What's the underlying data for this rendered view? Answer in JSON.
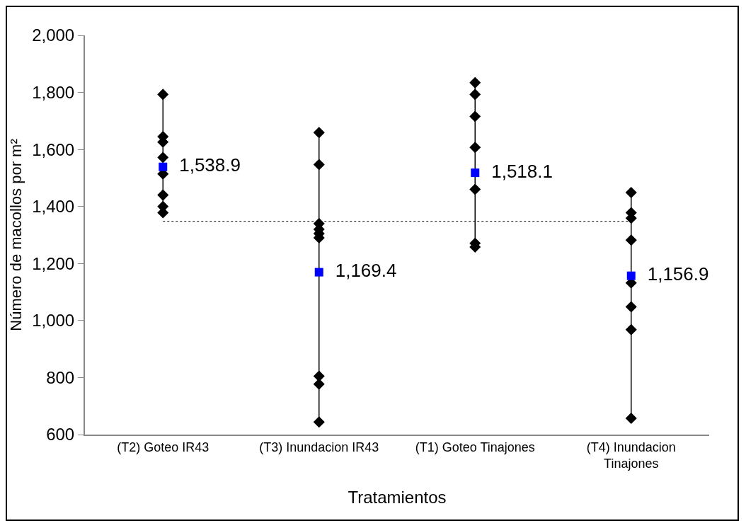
{
  "chart_data": {
    "type": "scatter",
    "xlabel": "Tratamientos",
    "ylabel": "Número de macollos por m²",
    "categories": [
      "(T2) Goteo IR43",
      "(T3) Inundacion IR43",
      "(T1) Goteo Tinajones",
      "(T4) Inundacion Tinajones"
    ],
    "ylim": [
      600,
      2000
    ],
    "yticks": [
      {
        "value": 600,
        "label": "600"
      },
      {
        "value": 800,
        "label": "800"
      },
      {
        "value": 1000,
        "label": "1,000"
      },
      {
        "value": 1200,
        "label": "1,200"
      },
      {
        "value": 1400,
        "label": "1,400"
      },
      {
        "value": 1600,
        "label": "1,600"
      },
      {
        "value": 1800,
        "label": "1,800"
      },
      {
        "value": 2000,
        "label": "2,000"
      }
    ],
    "grid": false,
    "series": [
      {
        "type": "line",
        "color": "#000000",
        "marker": "diamond",
        "line_style": "solid",
        "x": [
          "(T2) Goteo IR43",
          "(T2) Goteo IR43",
          "(T2) Goteo IR43",
          "(T2) Goteo IR43",
          "(T2) Goteo IR43",
          "(T2) Goteo IR43",
          "(T2) Goteo IR43",
          "(T2) Goteo IR43",
          "(T2) Goteo IR43",
          "(T3) Inundacion IR43",
          "(T3) Inundacion IR43",
          "(T3) Inundacion IR43",
          "(T3) Inundacion IR43",
          "(T3) Inundacion IR43",
          "(T3) Inundacion IR43",
          "(T3) Inundacion IR43",
          "(T3) Inundacion IR43",
          "(T3) Inundacion IR43",
          "(T3) Inundacion IR43",
          "(T1) Goteo Tinajones",
          "(T1) Goteo Tinajones",
          "(T1) Goteo Tinajones",
          "(T1) Goteo Tinajones",
          "(T1) Goteo Tinajones",
          "(T1) Goteo Tinajones",
          "(T1) Goteo Tinajones",
          "(T1) Goteo Tinajones",
          "(T4) Inundacion Tinajones",
          "(T4) Inundacion Tinajones",
          "(T4) Inundacion Tinajones",
          "(T4) Inundacion Tinajones",
          "(T4) Inundacion Tinajones",
          "(T4) Inundacion Tinajones",
          "(T4) Inundacion Tinajones",
          "(T4) Inundacion Tinajones"
        ],
        "values": [
          1793,
          1645,
          1626,
          1572,
          1514,
          1440,
          1400,
          1378,
          null,
          1659,
          1547,
          1340,
          1320,
          1305,
          1290,
          805,
          777,
          644,
          null,
          1834,
          1793,
          1716,
          1607,
          1460,
          1271,
          1258,
          null,
          1449,
          1378,
          1359,
          1282,
          1132,
          1048,
          968,
          657
        ]
      },
      {
        "color": "#0000ff",
        "marker": "square",
        "x": [
          "(T2) Goteo IR43",
          "(T3) Inundacion IR43",
          "(T1) Goteo Tinajones",
          "(T4) Inundacion Tinajones"
        ],
        "values": [
          1538.9,
          1169.4,
          1518.1,
          1156.9
        ],
        "value_labels": [
          "1,538.9",
          "1,169.4",
          "1,518.1",
          "1,156.9"
        ]
      }
    ],
    "ref_lines": [
      {
        "axis": "y",
        "value": 1348,
        "line_style": "dotted",
        "color": "#000000"
      }
    ]
  }
}
